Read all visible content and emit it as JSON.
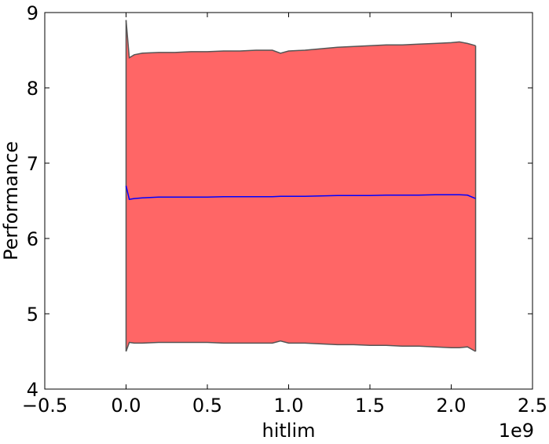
{
  "chart_data": {
    "type": "area",
    "title": "",
    "xlabel": "hitlim",
    "ylabel": "Performance",
    "x_offset_label": "1e9",
    "xlim": [
      -0.5,
      2.5
    ],
    "ylim": [
      4,
      9
    ],
    "x_ticks": [
      -0.5,
      0.0,
      0.5,
      1.0,
      1.5,
      2.0,
      2.5
    ],
    "x_tick_labels": [
      "−0.5",
      "0.0",
      "0.5",
      "1.0",
      "1.5",
      "2.0",
      "2.5"
    ],
    "y_ticks": [
      4,
      5,
      6,
      7,
      8,
      9
    ],
    "y_tick_labels": [
      "4",
      "5",
      "6",
      "7",
      "8",
      "9"
    ],
    "grid": false,
    "legend": "none",
    "colors": {
      "band_fill": "#ff6666",
      "band_edge": "#555555",
      "mean_line": "#0000ff"
    },
    "series": [
      {
        "kind": "mean",
        "x": [
          0.0,
          0.02,
          0.05,
          0.1,
          0.2,
          0.3,
          0.4,
          0.5,
          0.6,
          0.7,
          0.8,
          0.9,
          0.95,
          1.0,
          1.1,
          1.2,
          1.3,
          1.4,
          1.5,
          1.6,
          1.7,
          1.8,
          1.9,
          2.0,
          2.05,
          2.1,
          2.15
        ],
        "values": [
          6.7,
          6.52,
          6.53,
          6.54,
          6.55,
          6.55,
          6.55,
          6.55,
          6.555,
          6.555,
          6.555,
          6.555,
          6.56,
          6.56,
          6.56,
          6.565,
          6.57,
          6.57,
          6.57,
          6.575,
          6.575,
          6.575,
          6.58,
          6.58,
          6.58,
          6.575,
          6.53
        ]
      },
      {
        "kind": "upper",
        "x": [
          0.0,
          0.02,
          0.05,
          0.1,
          0.2,
          0.3,
          0.4,
          0.5,
          0.6,
          0.7,
          0.8,
          0.9,
          0.95,
          1.0,
          1.1,
          1.2,
          1.3,
          1.4,
          1.5,
          1.6,
          1.7,
          1.8,
          1.9,
          2.0,
          2.05,
          2.1,
          2.15
        ],
        "values": [
          8.9,
          8.4,
          8.44,
          8.46,
          8.47,
          8.47,
          8.48,
          8.48,
          8.49,
          8.49,
          8.5,
          8.5,
          8.46,
          8.49,
          8.5,
          8.52,
          8.54,
          8.55,
          8.56,
          8.57,
          8.57,
          8.58,
          8.59,
          8.6,
          8.61,
          8.59,
          8.56
        ]
      },
      {
        "kind": "lower",
        "x": [
          0.0,
          0.02,
          0.05,
          0.1,
          0.2,
          0.3,
          0.4,
          0.5,
          0.6,
          0.7,
          0.8,
          0.9,
          0.95,
          1.0,
          1.1,
          1.2,
          1.3,
          1.4,
          1.5,
          1.6,
          1.7,
          1.8,
          1.9,
          2.0,
          2.05,
          2.1,
          2.15
        ],
        "values": [
          4.5,
          4.62,
          4.61,
          4.61,
          4.62,
          4.62,
          4.62,
          4.62,
          4.61,
          4.61,
          4.61,
          4.61,
          4.64,
          4.61,
          4.61,
          4.6,
          4.59,
          4.59,
          4.58,
          4.58,
          4.57,
          4.57,
          4.56,
          4.55,
          4.55,
          4.56,
          4.5
        ]
      }
    ]
  }
}
